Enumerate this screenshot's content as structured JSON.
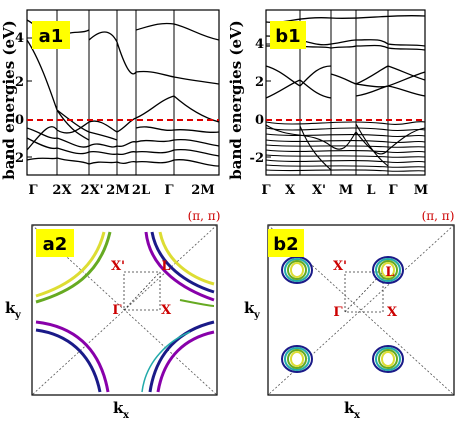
{
  "panel_a1": {
    "tag": "a1",
    "ylabel": "band energies (eV)",
    "yticks": [
      "4",
      "2",
      "0",
      "-2"
    ],
    "kpoints": [
      "Γ",
      "2X",
      "2X'",
      "2M",
      "2L",
      "Γ",
      "2M"
    ]
  },
  "panel_b1": {
    "tag": "b1",
    "ylabel": "band energies (eV)",
    "yticks": [
      "4",
      "2",
      "0",
      "-2"
    ],
    "kpoints": [
      "Γ",
      "X",
      "X'",
      "M",
      "L",
      "Γ",
      "M"
    ]
  },
  "panel_a2": {
    "tag": "a2",
    "corner": "(π, π)",
    "points": {
      "x_prime": "X'",
      "l": "L",
      "gamma": "Γ",
      "x": "X"
    },
    "xlabel_main": "k",
    "xlabel_sub": "x",
    "ylabel_main": "k",
    "ylabel_sub": "y"
  },
  "panel_b2": {
    "tag": "b2",
    "corner": "(π, π)",
    "points": {
      "x_prime": "X'",
      "l": "L",
      "gamma": "Γ",
      "x": "X"
    },
    "xlabel_main": "k",
    "xlabel_sub": "x",
    "ylabel_main": "k",
    "ylabel_sub": "y"
  },
  "colors": {
    "tag_bg": "#ffff00",
    "fermi_line": "#dd0000",
    "label_red": "#cc0000",
    "fs_purple": "#8800aa",
    "fs_navy": "#1a1a88",
    "fs_green": "#66aa22",
    "fs_yellow": "#dddd33",
    "fs_teal": "#22aaaa"
  }
}
